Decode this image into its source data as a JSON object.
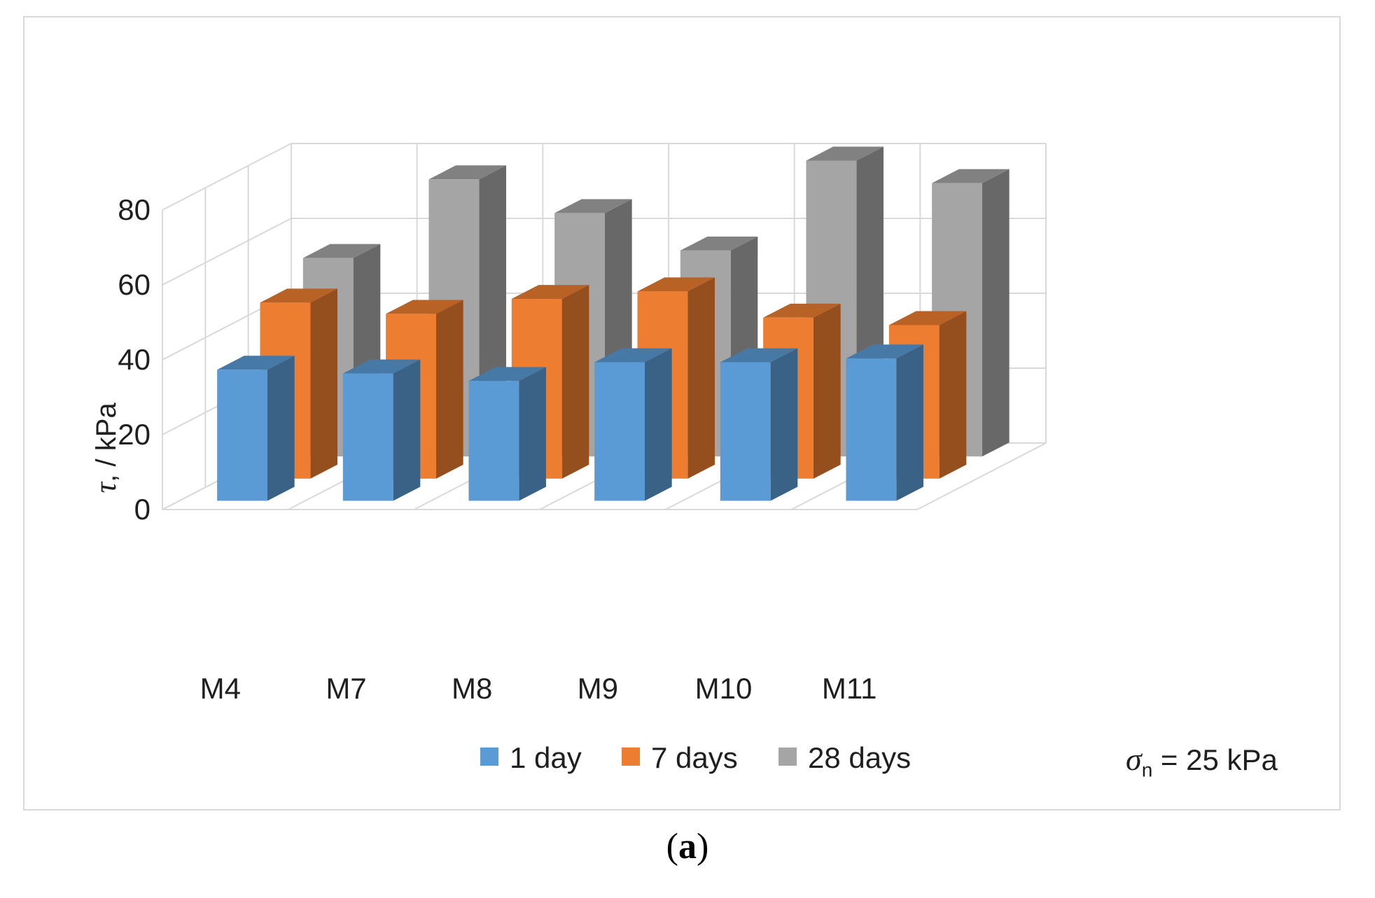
{
  "chart_data": {
    "type": "bar",
    "style": "3d-clustered-columns",
    "categories": [
      "M4",
      "M7",
      "M8",
      "M9",
      "M10",
      "M11"
    ],
    "series": [
      {
        "name": "1 day",
        "color": "#5b9bd5",
        "values": [
          35,
          34,
          32,
          37,
          37,
          38
        ]
      },
      {
        "name": "7 days",
        "color": "#ed7d31",
        "values": [
          47,
          44,
          48,
          50,
          43,
          41
        ]
      },
      {
        "name": "28 days",
        "color": "#a5a5a5",
        "values": [
          53,
          74,
          65,
          55,
          79,
          73
        ]
      }
    ],
    "ylabel": "τ, / kPa",
    "y_ticks": [
      "0",
      "20",
      "40",
      "60",
      "80"
    ],
    "ylim": [
      0,
      80
    ],
    "grid": true,
    "legend_position": "bottom"
  },
  "annotation": {
    "symbol": "σ",
    "subscript": "n",
    "value": " = 25 kPa"
  },
  "panel_label": {
    "open": "(",
    "letter": "a",
    "close": ")"
  }
}
